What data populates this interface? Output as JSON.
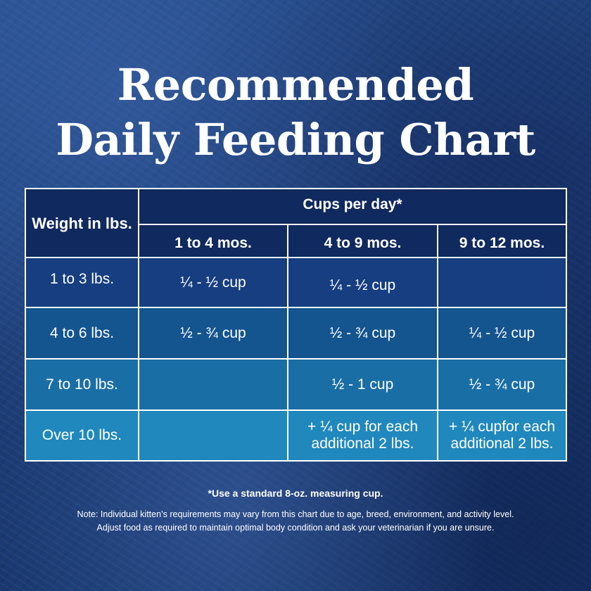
{
  "title": {
    "line1": "Recommended",
    "line2": "Daily Feeding Chart"
  },
  "chart_data": {
    "type": "table",
    "headers": {
      "weight": "Weight in lbs.",
      "group": "Cups per day*",
      "ages": [
        "1 to 4 mos.",
        "4 to 9 mos.",
        "9 to 12 mos."
      ]
    },
    "rows": [
      {
        "weight": "1 to 3 lbs.",
        "values": [
          "¼ - ½ cup",
          "¼ - ½ cup",
          ""
        ]
      },
      {
        "weight": "4 to 6 lbs.",
        "values": [
          "½ - ¾ cup",
          "½ - ¾ cup",
          "¼ - ½ cup"
        ]
      },
      {
        "weight": "7 to 10 lbs.",
        "values": [
          "",
          "½ - 1 cup",
          "½ - ¾ cup"
        ]
      },
      {
        "weight": "Over 10 lbs.",
        "values": [
          "",
          "+ ¼ cup for each additional 2 lbs.",
          "+ ¼ cupfor each additional 2 lbs."
        ]
      }
    ]
  },
  "footnote": "*Use a standard 8-oz. measuring cup.",
  "note": {
    "line1": "Note: Individual kitten’s requirements may vary from this chart due to age, breed, environment, and activity level.",
    "line2": "Adjust food as required to maintain optimal body condition and ask your veterinarian if you are unsure."
  }
}
